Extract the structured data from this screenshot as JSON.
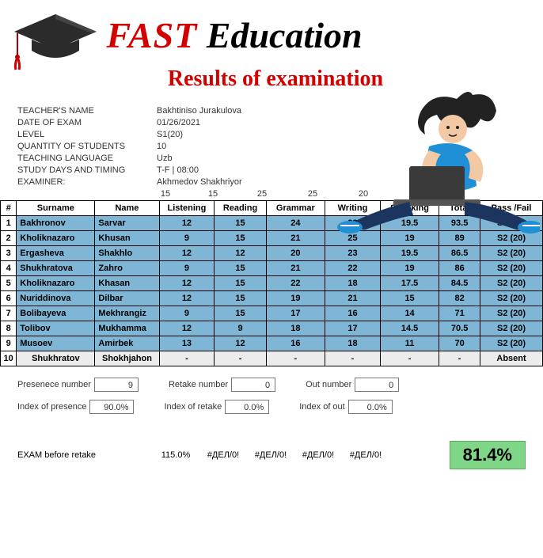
{
  "header": {
    "title_fast": "FAST",
    "title_edu": " Education",
    "subtitle": "Results of examination"
  },
  "meta": {
    "rows": [
      {
        "label": "TEACHER'S NAME",
        "value": "Bakhtiniso Jurakulova"
      },
      {
        "label": "DATE OF EXAM",
        "value": "01/26/2021"
      },
      {
        "label": "LEVEL",
        "value": "S1(20)"
      },
      {
        "label": "QUANTITY OF STUDENTS",
        "value": "10"
      },
      {
        "label": "TEACHING LANGUAGE",
        "value": "Uzb"
      },
      {
        "label": "STUDY DAYS AND TIMING",
        "value": "T-F | 08:00"
      },
      {
        "label": "EXAMINER:",
        "value": "Akhmedov Shakhriyor"
      }
    ]
  },
  "max_scores": [
    "15",
    "15",
    "25",
    "25",
    "20"
  ],
  "table": {
    "headers": [
      "#",
      "Surname",
      "Name",
      "Listening",
      "Reading",
      "Grammar",
      "Writing",
      "Speaking",
      "Total",
      "Pass /Fail"
    ],
    "rows": [
      {
        "idx": "1",
        "surname": "Bakhronov",
        "name": "Sarvar",
        "cells": [
          "12",
          "15",
          "24",
          "23",
          "19.5",
          "93.5",
          "S2 (20)"
        ],
        "absent": false
      },
      {
        "idx": "2",
        "surname": "Kholiknazaro",
        "name": "Khusan",
        "cells": [
          "9",
          "15",
          "21",
          "25",
          "19",
          "89",
          "S2 (20)"
        ],
        "absent": false
      },
      {
        "idx": "3",
        "surname": "Ergasheva",
        "name": "Shakhlo",
        "cells": [
          "12",
          "12",
          "20",
          "23",
          "19.5",
          "86.5",
          "S2 (20)"
        ],
        "absent": false
      },
      {
        "idx": "4",
        "surname": "Shukhratova",
        "name": "Zahro",
        "cells": [
          "9",
          "15",
          "21",
          "22",
          "19",
          "86",
          "S2 (20)"
        ],
        "absent": false
      },
      {
        "idx": "5",
        "surname": "Kholiknazaro",
        "name": "Khasan",
        "cells": [
          "12",
          "15",
          "22",
          "18",
          "17.5",
          "84.5",
          "S2 (20)"
        ],
        "absent": false
      },
      {
        "idx": "6",
        "surname": "Nuriddinova",
        "name": "Dilbar",
        "cells": [
          "12",
          "15",
          "19",
          "21",
          "15",
          "82",
          "S2 (20)"
        ],
        "absent": false
      },
      {
        "idx": "7",
        "surname": "Bolibayeva",
        "name": "Mekhrangiz",
        "cells": [
          "9",
          "15",
          "17",
          "16",
          "14",
          "71",
          "S2 (20)"
        ],
        "absent": false
      },
      {
        "idx": "8",
        "surname": "Tolibov",
        "name": "Mukhamma",
        "cells": [
          "12",
          "9",
          "18",
          "17",
          "14.5",
          "70.5",
          "S2 (20)"
        ],
        "absent": false
      },
      {
        "idx": "9",
        "surname": "Musoev",
        "name": "Amirbek",
        "cells": [
          "13",
          "12",
          "16",
          "18",
          "11",
          "70",
          "S2 (20)"
        ],
        "absent": false
      },
      {
        "idx": "10",
        "surname": "Shukhratov",
        "name": "Shokhjahon",
        "cells": [
          "-",
          "-",
          "-",
          "-",
          "-",
          "-",
          "Absent"
        ],
        "absent": true
      }
    ]
  },
  "stats": {
    "row1": [
      {
        "label": "Presenece number",
        "value": "9"
      },
      {
        "label": "Retake number",
        "value": "0"
      },
      {
        "label": "Out number",
        "value": "0"
      }
    ],
    "row2": [
      {
        "label": "Index of presence",
        "value": "90.0%"
      },
      {
        "label": "Index of retake",
        "value": "0.0%"
      },
      {
        "label": "Index of out",
        "value": "0.0%"
      }
    ]
  },
  "bottom": {
    "label": "EXAM before retake",
    "vals": [
      "115.0%",
      "#ДЕЛ/0!",
      "#ДЕЛ/0!",
      "#ДЕЛ/0!",
      "#ДЕЛ/0!"
    ],
    "big_pct": "81.4%"
  },
  "colors": {
    "red": "#d30000",
    "row_blue": "#7fb6d6",
    "absent_grey": "#ececec",
    "green": "#7fd686"
  }
}
